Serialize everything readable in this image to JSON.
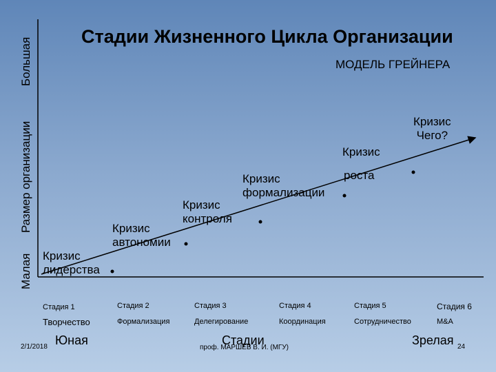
{
  "title": "Стадии Жизненного Цикла Организации",
  "subtitle": "МОДЕЛЬ ГРЕЙНЕРА",
  "y_axis": {
    "label": "Размер организации",
    "top": "Большая",
    "bottom": "Малая"
  },
  "x_axis": {
    "start": "Юная",
    "middle": "Стадии",
    "end": "Зрелая"
  },
  "crises": [
    {
      "line1": "Кризис",
      "line2": "лидерства"
    },
    {
      "line1": "Кризис",
      "line2": "автономии"
    },
    {
      "line1": "Кризис",
      "line2": "контроля"
    },
    {
      "line1": "Кризис",
      "line2": "формализации"
    },
    {
      "line1": "Кризис",
      "line2": "роста"
    },
    {
      "line1": "Кризис",
      "line2": "Чего?"
    }
  ],
  "stages": [
    {
      "label": "Стадия 1",
      "name": "Творчество"
    },
    {
      "label": "Стадия 2",
      "name": "Формализация"
    },
    {
      "label": "Стадия 3",
      "name": "Делегирование"
    },
    {
      "label": "Стадия 4",
      "name": "Координация"
    },
    {
      "label": "Стадия 5",
      "name": "Сотрудничество"
    },
    {
      "label": "Стадия 6",
      "name": "M&A"
    }
  ],
  "footer": {
    "date": "2/1/2018",
    "author": "проф. МАРШЕВ В. И. (МГУ)",
    "page": "24"
  }
}
